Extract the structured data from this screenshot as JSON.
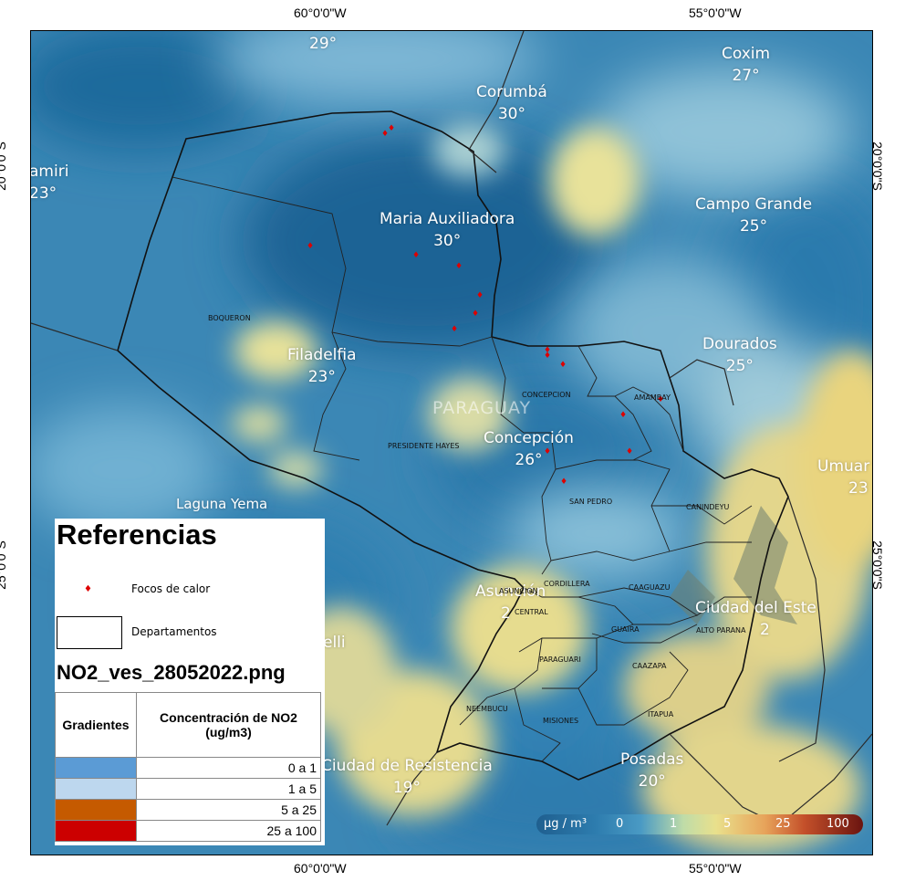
{
  "grid": {
    "top_left": "60°0'0\"W",
    "top_right": "55°0'0\"W",
    "bottom_left": "60°0'0\"W",
    "bottom_right": "55°0'0\"W",
    "left_upper": "20°0'0\"S",
    "left_lower": "25°0'0\"S",
    "right_upper": "20°0'0\"S",
    "right_lower": "25°0'0\"S"
  },
  "country": "PARAGUAY",
  "cities": [
    {
      "name": "",
      "temp": "29°"
    },
    {
      "name": "Corumbá",
      "temp": "30°"
    },
    {
      "name": "Coxim",
      "temp": "27°"
    },
    {
      "name": "amiri",
      "temp": "23°"
    },
    {
      "name": "Maria Auxiliadora",
      "temp": "30°"
    },
    {
      "name": "Campo Grande",
      "temp": "25°"
    },
    {
      "name": "Filadelfia",
      "temp": "23°"
    },
    {
      "name": "Dourados",
      "temp": "25°"
    },
    {
      "name": "Concepción",
      "temp": "26°"
    },
    {
      "name": "Umuar",
      "temp": "23"
    },
    {
      "name": "Laguna Yema",
      "temp": ""
    },
    {
      "name": "Asunción",
      "temp": "2"
    },
    {
      "name": "Ciudad del Este",
      "temp": "2"
    },
    {
      "name": "elli",
      "temp": ""
    },
    {
      "name": "Ciudad de Resistencia",
      "temp": "19°"
    },
    {
      "name": "Posadas",
      "temp": "20°"
    }
  ],
  "departments": [
    "BOQUERON",
    "CONCEPCION",
    "AMAMBAY",
    "PRESIDENTE HAYES",
    "SAN PEDRO",
    "CANINDEYU",
    "CORDILLERA",
    "CAAGUAZU",
    "ASUNCION",
    "CENTRAL",
    "GUAIRA",
    "ALTO PARANA",
    "PARAGUARI",
    "CAAZAPA",
    "NEEMBUCU",
    "MISIONES",
    "ITAPUA"
  ],
  "legend": {
    "title": "Referencias",
    "hotspots_label": "Focos de calor",
    "departments_label": "Departamentos",
    "file_name": "NO2_ves_28052022.png",
    "table_header_gradients": "Gradientes",
    "table_header_concentration": "Concentración de NO2 (ug/m3)",
    "rows": [
      {
        "range": "0 a 1",
        "color": "#5b9bd5"
      },
      {
        "range": "1 a 5",
        "color": "#bdd7ee"
      },
      {
        "range": "5 a 25",
        "color": "#c55a00"
      },
      {
        "range": "25 a 100",
        "color": "#cc0000"
      }
    ]
  },
  "scale": {
    "unit": "μg / m³",
    "ticks": [
      "0",
      "1",
      "5",
      "25",
      "100"
    ]
  },
  "hotspot_count": 16
}
